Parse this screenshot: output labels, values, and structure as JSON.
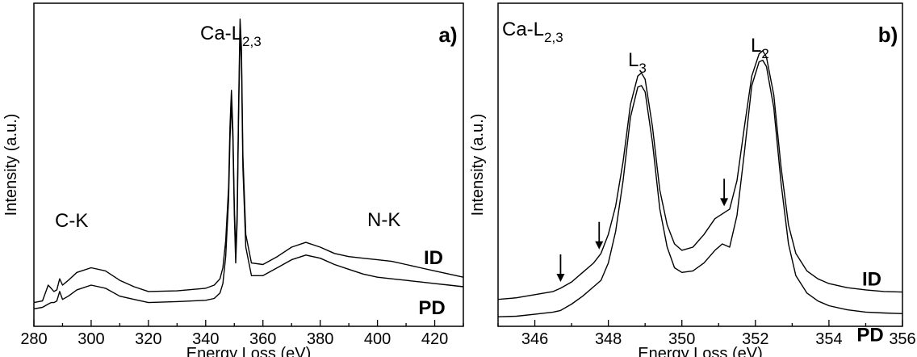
{
  "chart_data": [
    {
      "type": "line",
      "panel_label": "a)",
      "xlabel": "Energy Loss (eV)",
      "ylabel": "Intensity (a.u.)",
      "xlim": [
        280,
        430
      ],
      "x_ticks": [
        280,
        300,
        320,
        340,
        360,
        380,
        400,
        420
      ],
      "y_ticks": "none",
      "grid": false,
      "annotations": [
        {
          "base": "C-K",
          "sub": "",
          "x": 287,
          "y": 2.1
        },
        {
          "base": "Ca-L",
          "sub": "2,3",
          "x": 351,
          "y": 9.35
        },
        {
          "base": "N-K",
          "sub": "",
          "x": 402,
          "y": 2.35
        }
      ],
      "series": [
        {
          "name": "ID",
          "x": [
            280,
            283,
            284,
            285,
            286,
            287,
            288,
            289,
            290,
            292,
            295,
            300,
            305,
            310,
            315,
            320,
            330,
            340,
            343,
            345,
            346,
            347,
            348,
            348.5,
            349,
            349.5,
            350,
            350.5,
            351,
            351.5,
            352,
            352.5,
            353,
            354,
            356,
            360,
            365,
            370,
            375,
            380,
            385,
            390,
            395,
            400,
            405,
            410,
            415,
            420,
            425,
            430
          ],
          "y": [
            0.75,
            0.8,
            1.05,
            1.3,
            1.2,
            1.1,
            1.15,
            1.5,
            1.3,
            1.45,
            1.7,
            1.85,
            1.75,
            1.45,
            1.25,
            1.1,
            1.12,
            1.2,
            1.3,
            1.5,
            1.85,
            2.7,
            4.4,
            6.3,
            7.45,
            6.2,
            3.8,
            2.3,
            3.6,
            7.0,
            9.7,
            8.8,
            5.4,
            2.9,
            2.0,
            1.95,
            2.2,
            2.5,
            2.65,
            2.5,
            2.3,
            2.2,
            2.15,
            2.1,
            2.05,
            1.95,
            1.85,
            1.75,
            1.65,
            1.55
          ]
        },
        {
          "name": "PD",
          "x": [
            280,
            283,
            284,
            285,
            286,
            287,
            288,
            289,
            290,
            292,
            295,
            300,
            305,
            310,
            315,
            320,
            330,
            340,
            343,
            345,
            346,
            347,
            348,
            348.5,
            349,
            349.5,
            350,
            350.5,
            351,
            351.5,
            352,
            352.5,
            353,
            354,
            356,
            360,
            365,
            370,
            375,
            380,
            385,
            390,
            395,
            400,
            405,
            410,
            415,
            420,
            425,
            430
          ],
          "y": [
            0.55,
            0.6,
            0.65,
            0.7,
            0.75,
            0.75,
            0.8,
            1.1,
            0.85,
            0.95,
            1.15,
            1.3,
            1.2,
            0.95,
            0.85,
            0.75,
            0.78,
            0.82,
            0.88,
            1.05,
            1.35,
            2.2,
            4.0,
            5.9,
            7.1,
            5.9,
            3.5,
            2.0,
            3.3,
            6.7,
            9.3,
            8.4,
            5.0,
            2.5,
            1.6,
            1.6,
            1.85,
            2.1,
            2.25,
            2.15,
            1.95,
            1.8,
            1.65,
            1.55,
            1.5,
            1.45,
            1.4,
            1.35,
            1.3,
            1.25
          ]
        }
      ]
    },
    {
      "type": "line",
      "panel_label": "b)",
      "xlabel": "Energy Loss (eV)",
      "ylabel": "Intensity (a.u.)",
      "xlim": [
        345,
        356
      ],
      "x_ticks": [
        346,
        348,
        350,
        352,
        354,
        356
      ],
      "y_ticks": "none",
      "grid": false,
      "annotations": [
        {
          "base": "Ca-L",
          "sub": "2,3",
          "x": 345.1,
          "y": 10.1
        },
        {
          "base": "L",
          "sub": "3",
          "x": 348.8,
          "y": 8.7
        },
        {
          "base": "L",
          "sub": "2",
          "x": 352.1,
          "y": 9.55
        }
      ],
      "arrows": [
        346.7,
        347.75,
        351.15
      ],
      "series": [
        {
          "name": "ID",
          "x": [
            345,
            345.5,
            346,
            346.5,
            346.7,
            347,
            347.3,
            347.6,
            347.8,
            348,
            348.2,
            348.4,
            348.6,
            348.8,
            348.9,
            349,
            349.2,
            349.4,
            349.6,
            349.8,
            350,
            350.3,
            350.6,
            350.9,
            351.1,
            351.3,
            351.5,
            351.7,
            351.9,
            352.1,
            352.2,
            352.3,
            352.5,
            352.7,
            352.9,
            353.1,
            353.4,
            353.7,
            354,
            354.5,
            355,
            355.5,
            356
          ],
          "y": [
            0.85,
            0.9,
            1.0,
            1.1,
            1.2,
            1.4,
            1.7,
            2.0,
            2.3,
            2.9,
            3.8,
            5.2,
            7.0,
            7.9,
            8.0,
            7.8,
            6.3,
            4.3,
            3.2,
            2.6,
            2.4,
            2.5,
            2.9,
            3.4,
            3.55,
            3.7,
            4.6,
            6.3,
            7.9,
            8.6,
            8.7,
            8.5,
            7.3,
            5.0,
            3.2,
            2.3,
            1.75,
            1.5,
            1.35,
            1.22,
            1.15,
            1.1,
            1.08
          ]
        },
        {
          "name": "PD",
          "x": [
            345,
            345.5,
            346,
            346.5,
            346.7,
            347,
            347.3,
            347.6,
            347.8,
            348,
            348.2,
            348.4,
            348.6,
            348.8,
            348.9,
            349,
            349.2,
            349.4,
            349.6,
            349.8,
            350,
            350.3,
            350.6,
            350.9,
            351.1,
            351.3,
            351.5,
            351.7,
            351.9,
            352.1,
            352.2,
            352.3,
            352.5,
            352.7,
            352.9,
            353.1,
            353.4,
            353.7,
            354,
            354.5,
            355,
            355.5,
            356
          ],
          "y": [
            0.3,
            0.32,
            0.38,
            0.45,
            0.5,
            0.7,
            0.95,
            1.25,
            1.45,
            2.0,
            3.0,
            4.6,
            6.6,
            7.55,
            7.6,
            7.4,
            5.8,
            3.7,
            2.5,
            1.85,
            1.7,
            1.75,
            2.0,
            2.4,
            2.6,
            2.5,
            3.5,
            5.5,
            7.6,
            8.35,
            8.4,
            8.2,
            6.9,
            4.5,
            2.6,
            1.6,
            1.05,
            0.8,
            0.65,
            0.52,
            0.45,
            0.42,
            0.4
          ]
        }
      ]
    }
  ]
}
